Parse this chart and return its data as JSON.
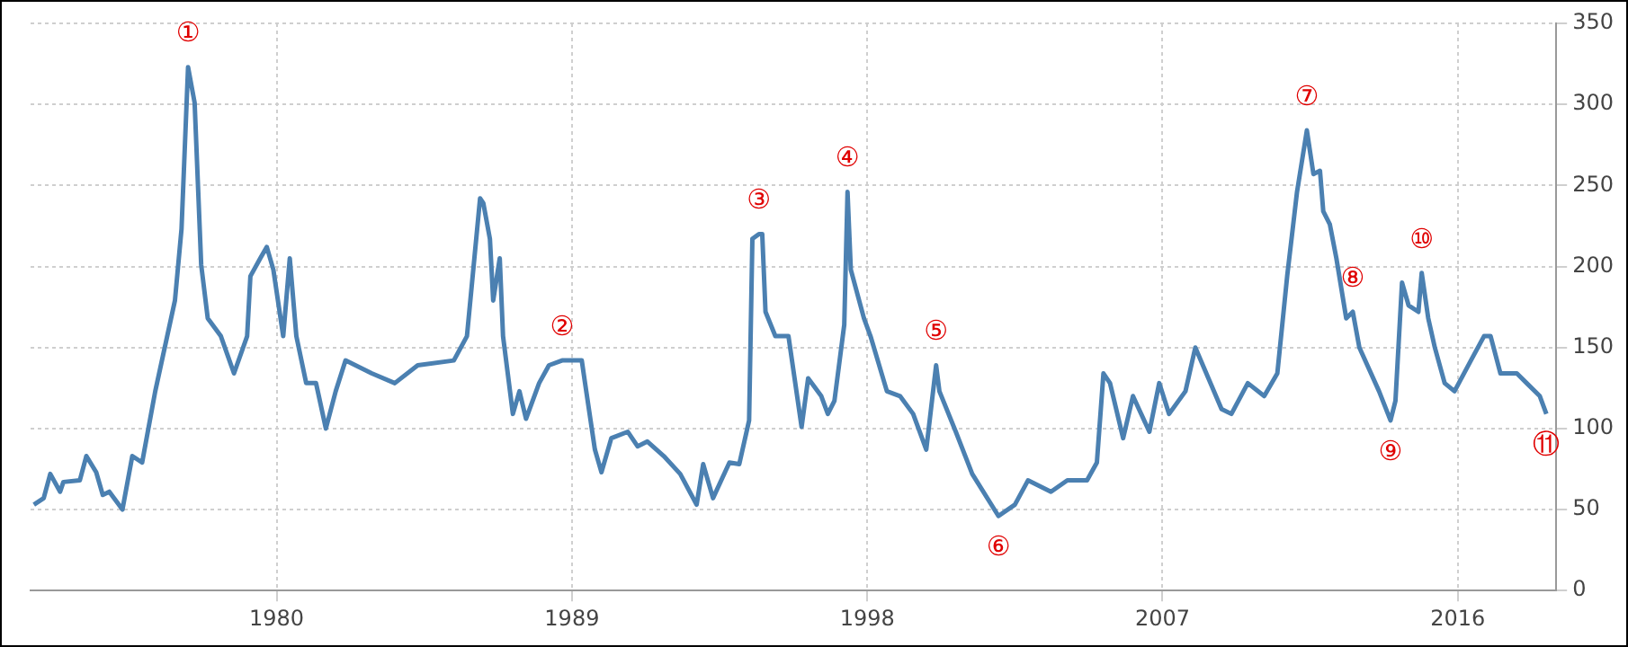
{
  "chart_data": {
    "type": "line",
    "xlim": [
      1972.5,
      2019
    ],
    "xticks": [
      1980,
      1989,
      1998,
      2007,
      2016
    ],
    "ylim": [
      0,
      350
    ],
    "yticks": [
      0,
      50,
      100,
      150,
      200,
      250,
      300,
      350
    ],
    "grid": true,
    "legend": false,
    "marker": "none",
    "line_style": "solid",
    "series": [
      {
        "color": "#4b80b1",
        "x": [
          1972.6,
          1972.9,
          1973.1,
          1973.4,
          1973.5,
          1974.0,
          1974.2,
          1974.5,
          1974.7,
          1974.9,
          1975.3,
          1975.6,
          1975.9,
          1976.1,
          1976.3,
          1976.9,
          1977.1,
          1977.3,
          1977.5,
          1977.7,
          1977.9,
          1978.3,
          1978.7,
          1979.1,
          1979.2,
          1979.5,
          1979.7,
          1979.9,
          1980.2,
          1980.4,
          1980.6,
          1980.9,
          1981.2,
          1981.5,
          1981.8,
          1982.1,
          1982.9,
          1983.6,
          1984.3,
          1985.4,
          1985.8,
          1986.2,
          1986.3,
          1986.5,
          1986.6,
          1986.8,
          1986.9,
          1987.2,
          1987.4,
          1987.6,
          1988.0,
          1988.3,
          1988.7,
          1989.3,
          1989.4,
          1989.7,
          1989.9,
          1990.2,
          1990.7,
          1991.0,
          1991.3,
          1991.8,
          1992.3,
          1992.8,
          1993.0,
          1993.3,
          1993.8,
          1994.1,
          1994.4,
          1994.5,
          1994.7,
          1994.8,
          1994.9,
          1995.2,
          1995.6,
          1996.0,
          1996.2,
          1996.6,
          1996.8,
          1997.0,
          1997.3,
          1997.4,
          1997.5,
          1997.9,
          1998.1,
          1998.6,
          1999.0,
          1999.4,
          1999.8,
          2000.1,
          2000.2,
          2000.7,
          2001.2,
          2002.0,
          2002.5,
          2002.9,
          2003.6,
          2004.1,
          2004.7,
          2005.0,
          2005.2,
          2005.4,
          2005.8,
          2006.1,
          2006.6,
          2006.9,
          2007.2,
          2007.7,
          2008.0,
          2008.4,
          2008.8,
          2009.1,
          2009.6,
          2010.1,
          2010.5,
          2010.8,
          2011.1,
          2011.4,
          2011.6,
          2011.8,
          2011.9,
          2012.1,
          2012.3,
          2012.6,
          2012.8,
          2013.0,
          2013.6,
          2013.95,
          2014.1,
          2014.3,
          2014.5,
          2014.8,
          2014.9,
          2015.1,
          2015.3,
          2015.6,
          2015.9,
          2016.4,
          2016.8,
          2017.0,
          2017.3,
          2017.8,
          2018.1,
          2018.5,
          2018.7
        ],
        "values": [
          53,
          57,
          72,
          61,
          67,
          68,
          83,
          73,
          59,
          61,
          50,
          83,
          79,
          101,
          123,
          179,
          223,
          323,
          301,
          201,
          168,
          157,
          134,
          157,
          194,
          205,
          212,
          198,
          157,
          205,
          157,
          128,
          128,
          100,
          123,
          142,
          134,
          128,
          139,
          142,
          157,
          242,
          239,
          217,
          179,
          205,
          157,
          109,
          123,
          106,
          128,
          139,
          142,
          142,
          128,
          87,
          73,
          94,
          98,
          89,
          92,
          83,
          72,
          53,
          78,
          57,
          79,
          78,
          105,
          217,
          220,
          220,
          172,
          157,
          157,
          101,
          131,
          120,
          109,
          117,
          164,
          246,
          198,
          168,
          157,
          123,
          120,
          109,
          87,
          139,
          123,
          98,
          72,
          46,
          53,
          68,
          61,
          68,
          68,
          79,
          134,
          128,
          94,
          120,
          98,
          128,
          109,
          123,
          150,
          131,
          112,
          109,
          128,
          120,
          134,
          194,
          246,
          284,
          257,
          259,
          234,
          226,
          205,
          168,
          172,
          150,
          123,
          105,
          117,
          190,
          176,
          172,
          196,
          168,
          150,
          128,
          123,
          142,
          157,
          157,
          134,
          134,
          128,
          120,
          109
        ]
      }
    ],
    "annotations": [
      {
        "text": "①",
        "x": 1977.3,
        "y": 323
      },
      {
        "text": "②",
        "x": 1988.7,
        "y": 142
      },
      {
        "text": "③",
        "x": 1994.7,
        "y": 220
      },
      {
        "text": "④",
        "x": 1997.4,
        "y": 246
      },
      {
        "text": "⑤",
        "x": 2000.1,
        "y": 139
      },
      {
        "text": "⑥",
        "x": 2002.0,
        "y": 46
      },
      {
        "text": "⑦",
        "x": 2011.4,
        "y": 284
      },
      {
        "text": "⑧",
        "x": 2012.8,
        "y": 172
      },
      {
        "text": "⑨",
        "x": 2013.95,
        "y": 105
      },
      {
        "text": "⑩",
        "x": 2014.9,
        "y": 196
      },
      {
        "text": "⑪",
        "x": 2018.7,
        "y": 109
      }
    ]
  }
}
